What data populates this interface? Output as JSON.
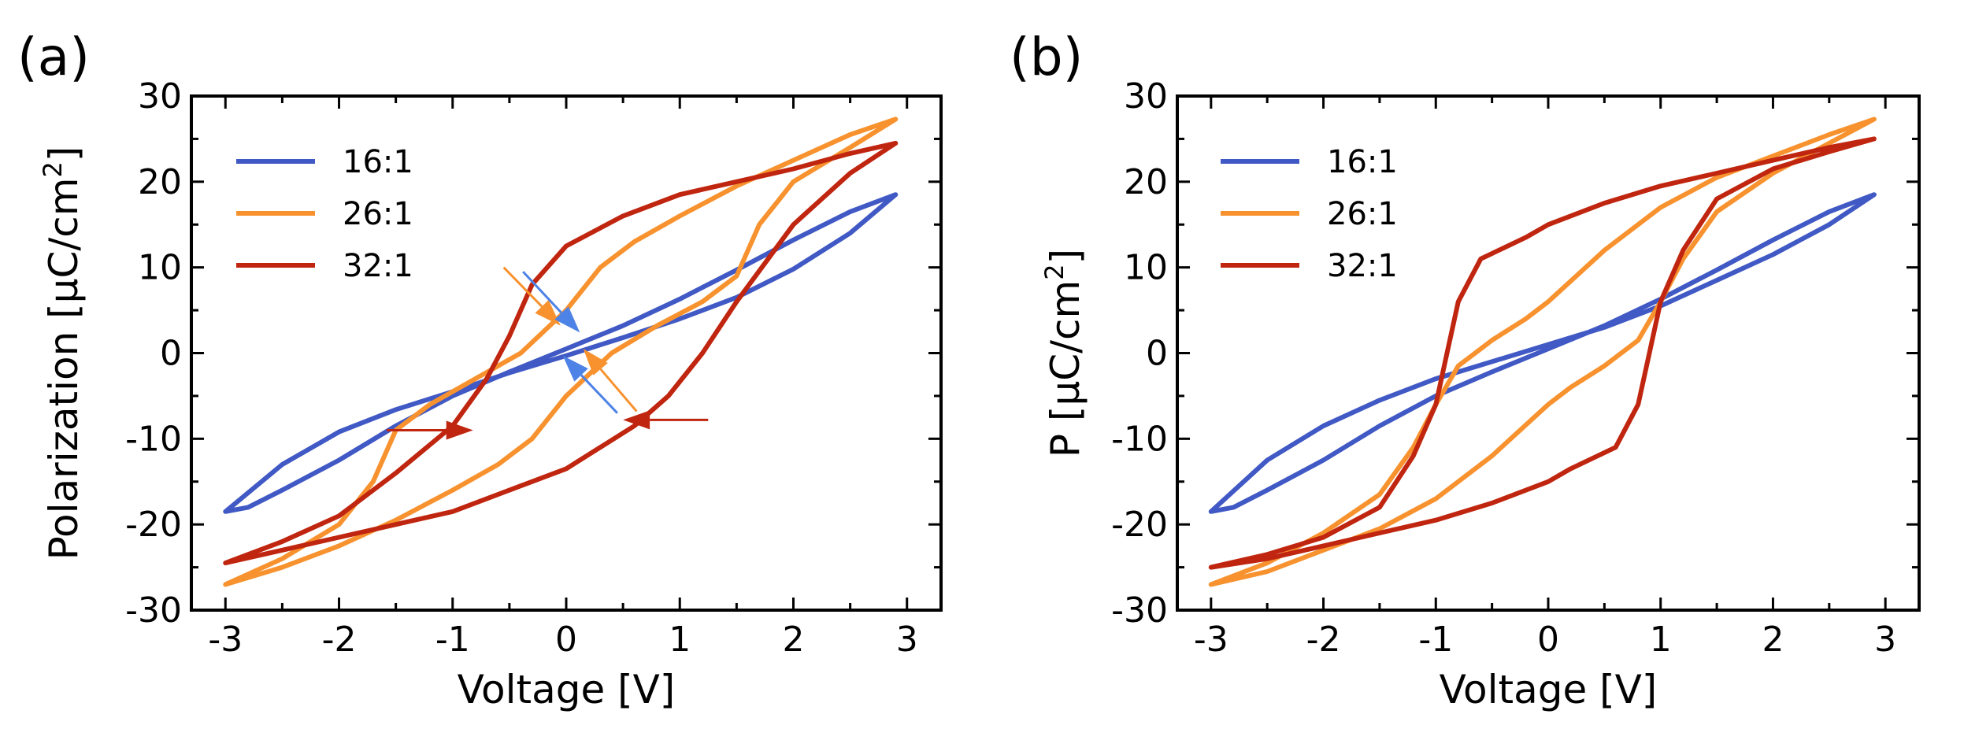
{
  "chart_data": [
    {
      "type": "line",
      "panel_label": "(a)",
      "title": "",
      "xlabel": "Voltage [V]",
      "ylabel": "Polarization [μC/cm²]",
      "ylabel_parts": {
        "main": "Polarization [μC/cm",
        "sup": "2",
        "end": "]"
      },
      "xlim": [
        -3.3,
        3.3
      ],
      "ylim": [
        -30,
        30
      ],
      "xticks": [
        -3,
        -2,
        -1,
        0,
        1,
        2,
        3
      ],
      "yticks": [
        -30,
        -20,
        -10,
        0,
        10,
        20,
        30
      ],
      "xtick_labels": [
        "-3",
        "-2",
        "-1",
        "0",
        "1",
        "2",
        "3"
      ],
      "ytick_labels": [
        "-30",
        "-20",
        "-10",
        "0",
        "10",
        "20",
        "30"
      ],
      "legend_position": "top-left",
      "series": [
        {
          "name": "16:1",
          "color": "#4059c4",
          "x": [
            -3,
            -2.8,
            -2.5,
            -2,
            -1.5,
            -1,
            -0.5,
            0,
            0.5,
            1,
            1.5,
            2,
            2.5,
            2.9,
            2.5,
            2,
            1.5,
            1,
            0.5,
            0,
            -0.5,
            -1,
            -1.5,
            -2,
            -2.5,
            -3
          ],
          "y": [
            -18.5,
            -18,
            -16,
            -12.5,
            -8.5,
            -5,
            -2.2,
            0.5,
            3.2,
            6.3,
            9.7,
            13.2,
            16.5,
            18.5,
            14,
            9.8,
            6.5,
            4,
            1.8,
            -0.3,
            -2.3,
            -4.5,
            -6.6,
            -9.2,
            -13,
            -18.5
          ]
        },
        {
          "name": "26:1",
          "color": "#f7922f",
          "x": [
            -3,
            -2.5,
            -2,
            -1.7,
            -1.5,
            -1.2,
            -0.8,
            -0.4,
            0,
            0.3,
            0.6,
            1,
            1.5,
            2,
            2.5,
            2.9,
            2.5,
            2,
            1.7,
            1.5,
            1.2,
            0.8,
            0.4,
            0,
            -0.3,
            -0.6,
            -1,
            -1.5,
            -2,
            -2.5,
            -3
          ],
          "y": [
            -27,
            -24,
            -20,
            -15,
            -9,
            -6,
            -3,
            0,
            5,
            10,
            13,
            16,
            19.5,
            22.5,
            25.5,
            27.3,
            24,
            20,
            15,
            9,
            6,
            3.2,
            0,
            -5,
            -10,
            -13,
            -16,
            -19.5,
            -22.5,
            -25,
            -27
          ]
        },
        {
          "name": "32:1",
          "color": "#c0260f",
          "x": [
            -3,
            -2.5,
            -2,
            -1.5,
            -1,
            -0.7,
            -0.5,
            -0.3,
            0,
            0.5,
            1,
            1.5,
            2,
            2.5,
            2.9,
            2.5,
            2,
            1.5,
            1.2,
            0.9,
            0.6,
            0.3,
            0,
            -0.5,
            -1,
            -1.5,
            -2,
            -2.5,
            -3
          ],
          "y": [
            -24.5,
            -22,
            -19,
            -14,
            -8.5,
            -3,
            2,
            8,
            12.5,
            16,
            18.5,
            20,
            21.5,
            23.3,
            24.5,
            21,
            15,
            6,
            0,
            -5,
            -8.5,
            -11,
            -13.5,
            -16,
            -18.5,
            -20,
            -21.5,
            -23,
            -24.5
          ]
        }
      ],
      "annotations": [
        {
          "type": "arrow",
          "color": "#f7922f",
          "from": [
            -0.55,
            10
          ],
          "to": [
            -0.05,
            3.2
          ]
        },
        {
          "type": "arrow",
          "color": "#4d82e6",
          "from": [
            -0.38,
            9.5
          ],
          "to": [
            0.12,
            2.4
          ]
        },
        {
          "type": "arrow",
          "color": "#4d82e6",
          "from": [
            0.45,
            -7
          ],
          "to": [
            -0.03,
            -0.3
          ]
        },
        {
          "type": "arrow",
          "color": "#f7922f",
          "from": [
            0.62,
            -6.8
          ],
          "to": [
            0.15,
            0.5
          ]
        },
        {
          "type": "arrow",
          "color": "#c0260f",
          "from": [
            -1.58,
            -9
          ],
          "to": [
            -0.82,
            -9
          ]
        },
        {
          "type": "arrow",
          "color": "#c0260f",
          "from": [
            1.25,
            -7.8
          ],
          "to": [
            0.5,
            -7.8
          ]
        }
      ]
    },
    {
      "type": "line",
      "panel_label": "(b)",
      "title": "",
      "xlabel": "Voltage [V]",
      "ylabel": "P [μC/cm²]",
      "ylabel_parts": {
        "main": "P [μC/cm",
        "sup": "2",
        "end": "]"
      },
      "xlim": [
        -3.3,
        3.3
      ],
      "ylim": [
        -30,
        30
      ],
      "xticks": [
        -3,
        -2,
        -1,
        0,
        1,
        2,
        3
      ],
      "yticks": [
        -30,
        -20,
        -10,
        0,
        10,
        20,
        30
      ],
      "xtick_labels": [
        "-3",
        "-2",
        "-1",
        "0",
        "1",
        "2",
        "3"
      ],
      "ytick_labels": [
        "-30",
        "-20",
        "-10",
        "0",
        "10",
        "20",
        "30"
      ],
      "legend_position": "top-left",
      "series": [
        {
          "name": "16:1",
          "color": "#4059c4",
          "x": [
            -3,
            -2.8,
            -2.5,
            -2,
            -1.5,
            -1,
            -0.5,
            0,
            0.5,
            1,
            1.5,
            2,
            2.5,
            2.9,
            2.5,
            2,
            1.5,
            1,
            0.5,
            0,
            -0.5,
            -1,
            -1.5,
            -2,
            -2.5,
            -3
          ],
          "y": [
            -18.5,
            -18,
            -16,
            -12.5,
            -8.5,
            -5,
            -2.2,
            0.5,
            3.2,
            6.3,
            9.7,
            13.2,
            16.5,
            18.5,
            15,
            11.5,
            8.5,
            5.5,
            3,
            1,
            -1,
            -3,
            -5.5,
            -8.5,
            -12.5,
            -18.5
          ]
        },
        {
          "name": "26:1",
          "color": "#f7922f",
          "x": [
            -3,
            -2.5,
            -2,
            -1.5,
            -1.2,
            -1,
            -0.8,
            -0.5,
            -0.2,
            0,
            0.5,
            1,
            1.5,
            2,
            2.5,
            2.9,
            2.5,
            2,
            1.5,
            1.2,
            1,
            0.8,
            0.5,
            0.2,
            0,
            -0.5,
            -1,
            -1.5,
            -2,
            -2.5,
            -3
          ],
          "y": [
            -27,
            -24.5,
            -21,
            -16.5,
            -11,
            -6,
            -1.5,
            1.5,
            4,
            6,
            12,
            17,
            20.5,
            23,
            25.5,
            27.3,
            24.5,
            21,
            16.5,
            11,
            6,
            1.5,
            -1.5,
            -4,
            -6,
            -12,
            -17,
            -20.5,
            -23,
            -25.5,
            -27
          ]
        },
        {
          "name": "32:1",
          "color": "#c0260f",
          "x": [
            -3,
            -2.5,
            -2,
            -1.5,
            -1.2,
            -1,
            -0.9,
            -0.8,
            -0.6,
            -0.2,
            0,
            0.5,
            1,
            1.5,
            2,
            2.5,
            2.9,
            2.5,
            2,
            1.5,
            1.2,
            1,
            0.9,
            0.8,
            0.6,
            0.2,
            0,
            -0.5,
            -1,
            -1.5,
            -2,
            -2.5,
            -3
          ],
          "y": [
            -25,
            -23.5,
            -21.5,
            -18,
            -12,
            -6,
            0,
            6,
            11,
            13.5,
            15,
            17.5,
            19.5,
            21,
            22.5,
            24,
            25,
            23.5,
            21.5,
            18,
            12,
            6,
            0,
            -6,
            -11,
            -13.5,
            -15,
            -17.5,
            -19.5,
            -21,
            -22.5,
            -24,
            -25
          ]
        }
      ],
      "annotations": []
    }
  ]
}
